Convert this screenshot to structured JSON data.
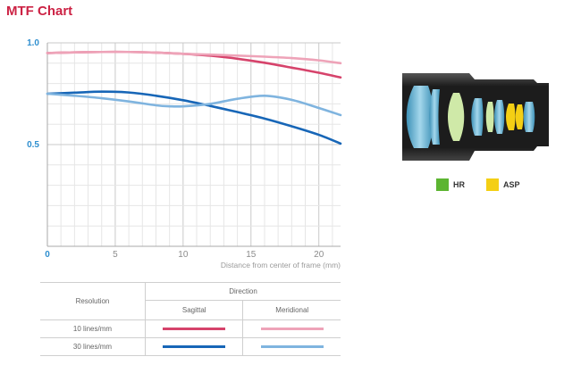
{
  "page": {
    "title": "MTF Chart"
  },
  "chart_data": {
    "type": "line",
    "xlim": [
      0,
      21.6
    ],
    "ylim": [
      0,
      1.0
    ],
    "x_ticks": [
      0,
      5,
      10,
      15,
      20
    ],
    "y_ticks": [
      0.5,
      1.0
    ],
    "y_tick_labels": [
      "0.5",
      "1.0"
    ],
    "xlabel": "Distance from center of frame (mm)",
    "grid": true,
    "series": [
      {
        "resolution": "10 lines/mm",
        "direction": "Sagittal",
        "color": "#d6436b",
        "x": [
          0,
          2,
          4,
          6,
          8,
          10,
          12,
          14,
          16,
          18,
          20,
          21.6
        ],
        "y": [
          0.95,
          0.953,
          0.955,
          0.955,
          0.952,
          0.946,
          0.937,
          0.922,
          0.902,
          0.878,
          0.853,
          0.83
        ]
      },
      {
        "resolution": "10 lines/mm",
        "direction": "Meridional",
        "color": "#eea3b8",
        "x": [
          0,
          2,
          4,
          6,
          8,
          10,
          12,
          14,
          16,
          18,
          20,
          21.6
        ],
        "y": [
          0.95,
          0.953,
          0.955,
          0.955,
          0.952,
          0.946,
          0.942,
          0.937,
          0.932,
          0.925,
          0.914,
          0.9
        ]
      },
      {
        "resolution": "30 lines/mm",
        "direction": "Sagittal",
        "color": "#1766b7",
        "x": [
          0,
          2,
          4,
          6,
          8,
          10,
          12,
          14,
          16,
          18,
          20,
          21.6
        ],
        "y": [
          0.75,
          0.755,
          0.76,
          0.756,
          0.74,
          0.718,
          0.69,
          0.66,
          0.628,
          0.59,
          0.548,
          0.505
        ]
      },
      {
        "resolution": "30 lines/mm",
        "direction": "Meridional",
        "color": "#7fb4df",
        "x": [
          0,
          2,
          4,
          6,
          8,
          9,
          10,
          12,
          14,
          16,
          18,
          20,
          21.6
        ],
        "y": [
          0.75,
          0.74,
          0.728,
          0.712,
          0.693,
          0.688,
          0.688,
          0.7,
          0.725,
          0.74,
          0.72,
          0.68,
          0.645
        ]
      }
    ]
  },
  "lens_legend": [
    {
      "label": "HR",
      "color": "#5cb531"
    },
    {
      "label": "ASP",
      "color": "#f4cf14"
    }
  ],
  "table": {
    "header_resolution": "Resolution",
    "header_direction": "Direction",
    "col_sagittal": "Sagittal",
    "col_meridional": "Meridional",
    "rows": [
      {
        "label": "10 lines/mm",
        "sagittal_color": "#d6436b",
        "meridional_color": "#eea3b8"
      },
      {
        "label": "30 lines/mm",
        "sagittal_color": "#1766b7",
        "meridional_color": "#7fb4df"
      }
    ]
  }
}
